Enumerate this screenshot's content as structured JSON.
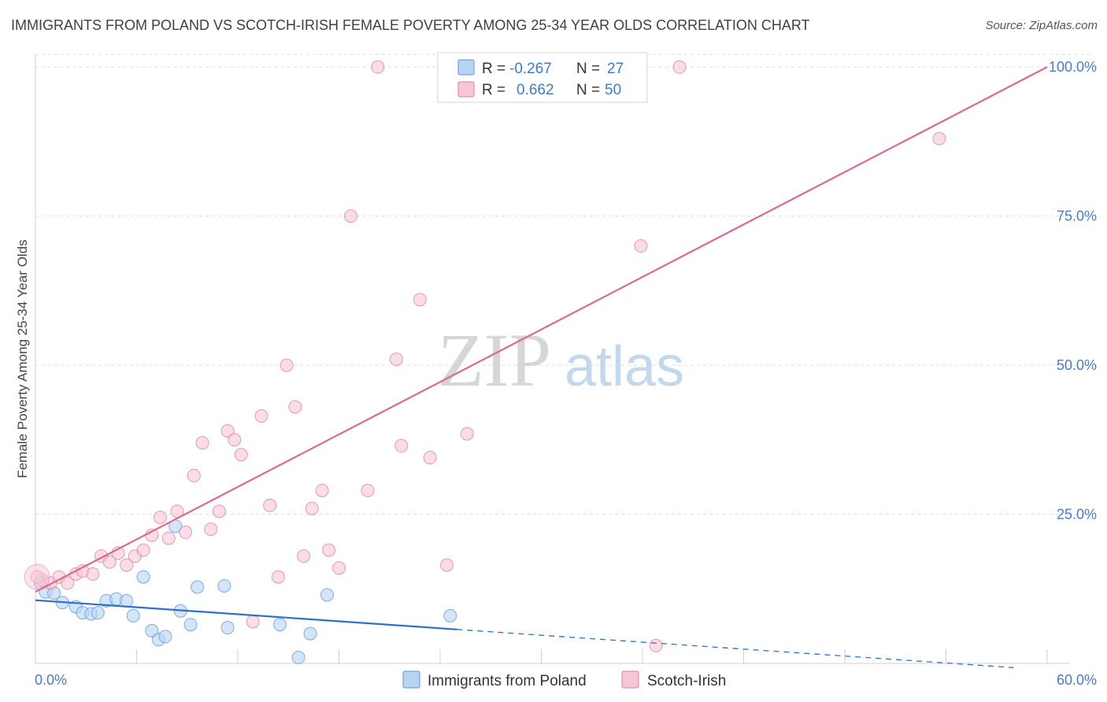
{
  "header": {
    "title": "IMMIGRANTS FROM POLAND VS SCOTCH-IRISH FEMALE POVERTY AMONG 25-34 YEAR OLDS CORRELATION CHART",
    "source": "Source: ZipAtlas.com"
  },
  "watermark": {
    "zip": "ZIP",
    "atlas": "atlas"
  },
  "colors": {
    "poland": "#5b93d6",
    "poland_fill": "#b9d3f3",
    "scotch": "#e07aa0",
    "scotch_fill": "#f8c7d6",
    "poland_line": "#2d6fc9",
    "scotch_line": "#e0688f",
    "grid": "#dddddd",
    "tick_text": "#4a7cc2"
  },
  "legend_top": {
    "rows": [
      {
        "r_label": "R =",
        "r_value": "-0.267",
        "n_label": "N =",
        "n_value": "27"
      },
      {
        "r_label": "R =",
        "r_value": "0.662",
        "n_label": "N =",
        "n_value": "50"
      }
    ]
  },
  "legend_bottom": [
    "Immigrants from Poland",
    "Scotch-Irish"
  ],
  "chart_data": {
    "type": "scatter",
    "title": "IMMIGRANTS FROM POLAND VS SCOTCH-IRISH FEMALE POVERTY AMONG 25-34 YEAR OLDS CORRELATION CHART",
    "xlabel": "",
    "ylabel": "Female Poverty Among 25-34 Year Olds",
    "xlim": [
      0,
      60
    ],
    "ylim": [
      0,
      102
    ],
    "x_tick_labels": [
      "0.0%",
      "60.0%"
    ],
    "y_ticks": [
      25,
      50,
      75,
      100
    ],
    "y_tick_labels": [
      "25.0%",
      "50.0%",
      "75.0%",
      "100.0%"
    ],
    "grid": true,
    "legend_position": "top-center",
    "series": [
      {
        "name": "Immigrants from Poland",
        "R": -0.267,
        "N": 27,
        "points": [
          [
            0.3,
            13.5
          ],
          [
            0.6,
            12.0
          ],
          [
            1.1,
            11.8
          ],
          [
            1.6,
            10.2
          ],
          [
            2.4,
            9.5
          ],
          [
            2.8,
            8.5
          ],
          [
            3.3,
            8.3
          ],
          [
            3.7,
            8.5
          ],
          [
            4.2,
            10.5
          ],
          [
            4.8,
            10.8
          ],
          [
            5.4,
            10.5
          ],
          [
            5.8,
            8.0
          ],
          [
            6.4,
            14.5
          ],
          [
            6.9,
            5.5
          ],
          [
            7.3,
            4.0
          ],
          [
            7.7,
            4.5
          ],
          [
            8.3,
            23.0
          ],
          [
            8.6,
            8.8
          ],
          [
            9.2,
            6.5
          ],
          [
            9.6,
            12.8
          ],
          [
            11.2,
            13.0
          ],
          [
            11.4,
            6.0
          ],
          [
            14.5,
            6.5
          ],
          [
            15.6,
            1.0
          ],
          [
            16.3,
            5.0
          ],
          [
            17.3,
            11.5
          ],
          [
            24.6,
            8.0
          ]
        ],
        "trend": {
          "x": [
            0,
            25
          ],
          "y": [
            10.6,
            5.7
          ]
        },
        "trend_extension": {
          "x": [
            25,
            58
          ],
          "y": [
            5.7,
            -0.7
          ]
        }
      },
      {
        "name": "Scotch-Irish",
        "R": 0.662,
        "N": 50,
        "points": [
          [
            0.4,
            14.0
          ],
          [
            0.9,
            13.5
          ],
          [
            1.4,
            14.5
          ],
          [
            1.9,
            13.5
          ],
          [
            2.4,
            15.0
          ],
          [
            2.8,
            15.5
          ],
          [
            3.4,
            15.0
          ],
          [
            3.9,
            18.0
          ],
          [
            4.4,
            17.0
          ],
          [
            4.9,
            18.5
          ],
          [
            5.4,
            16.5
          ],
          [
            5.9,
            18.0
          ],
          [
            6.4,
            19.0
          ],
          [
            6.9,
            21.5
          ],
          [
            7.4,
            24.5
          ],
          [
            7.9,
            21.0
          ],
          [
            8.4,
            25.5
          ],
          [
            8.9,
            22.0
          ],
          [
            9.4,
            31.5
          ],
          [
            9.9,
            37.0
          ],
          [
            10.4,
            22.5
          ],
          [
            10.9,
            25.5
          ],
          [
            11.4,
            39.0
          ],
          [
            11.8,
            37.5
          ],
          [
            12.2,
            35.0
          ],
          [
            12.9,
            7.0
          ],
          [
            13.4,
            41.5
          ],
          [
            13.9,
            26.5
          ],
          [
            14.4,
            14.5
          ],
          [
            14.9,
            50.0
          ],
          [
            15.4,
            43.0
          ],
          [
            15.9,
            18.0
          ],
          [
            16.4,
            26.0
          ],
          [
            17.0,
            29.0
          ],
          [
            17.4,
            19.0
          ],
          [
            18.0,
            16.0
          ],
          [
            18.7,
            75.0
          ],
          [
            19.7,
            29.0
          ],
          [
            20.3,
            100.0
          ],
          [
            21.4,
            51.0
          ],
          [
            21.7,
            36.5
          ],
          [
            22.8,
            61.0
          ],
          [
            23.4,
            34.5
          ],
          [
            24.4,
            16.5
          ],
          [
            25.6,
            38.5
          ],
          [
            35.9,
            70.0
          ],
          [
            36.8,
            3.0
          ],
          [
            38.2,
            100.0
          ],
          [
            53.6,
            88.0
          ],
          [
            0.1,
            14.5
          ]
        ],
        "trend": {
          "x": [
            0,
            60
          ],
          "y": [
            12.0,
            100.0
          ]
        }
      }
    ]
  }
}
